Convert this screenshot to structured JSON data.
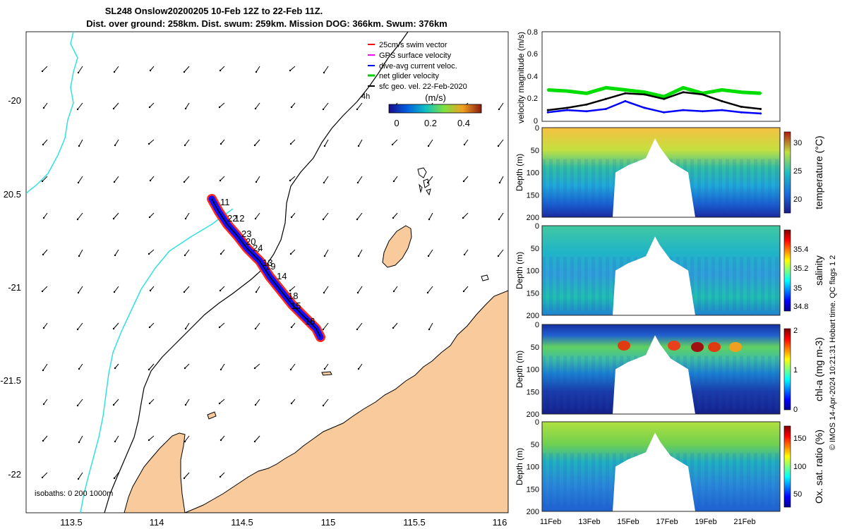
{
  "title": {
    "line1": "SL248 Onslow20200205 10-Feb 12Z to 22-Feb 11Z.",
    "line2": "Dist. over ground: 258km. Dist. swum: 259km. Mission DOG: 366km. Swum: 376km"
  },
  "map": {
    "lon_ticks": [
      "113.5",
      "114",
      "114.5",
      "115",
      "115.5",
      "116"
    ],
    "lat_ticks": [
      "-20",
      "20.5",
      "-21",
      "-21.5",
      "-22"
    ],
    "legend": [
      {
        "label": "25cm/s swim vector",
        "color": "#ff0000"
      },
      {
        "label": "GPS surface velocity",
        "color": "#ff00ff"
      },
      {
        "label": "dive-avg current veloc.",
        "color": "#0000ff"
      },
      {
        "label": "net glider velocity",
        "color": "#00cc00"
      },
      {
        "label": "sfc geo. vel. 22-Feb-2020",
        "color": "#000000"
      }
    ],
    "speed_unit": "(m/s)",
    "colorbar_ticks": [
      "0",
      "0.2",
      "0.4"
    ],
    "isobaths_label": "isobaths: 0   200  1000m",
    "contour_label": "4h",
    "day_labels": [
      "11",
      "22",
      "12",
      "23",
      "20",
      "24",
      "13",
      "19",
      "14",
      "18",
      "15",
      "16"
    ],
    "land_color": "#f9cb9c",
    "isobath_200_color": "#000000",
    "isobath_1000_color": "#33e0e0"
  },
  "panels": {
    "velocity": {
      "ylabel": "velocity magnitude (m/s)",
      "yticks": [
        "0",
        "0.2",
        "0.4",
        "0.6",
        "0.8"
      ]
    },
    "temperature": {
      "ylabel": "Depth (m)",
      "cblabel": "temperature (°C)",
      "cbticks": [
        "20",
        "25",
        "30"
      ]
    },
    "salinity": {
      "ylabel": "Depth (m)",
      "cblabel": "salinity",
      "cbticks": [
        "34.8",
        "35",
        "35.2",
        "35.4"
      ]
    },
    "chla": {
      "ylabel": "Depth (m)",
      "cblabel": "chl-a (mg m-3)",
      "cbticks": [
        "0",
        "1",
        "2"
      ]
    },
    "oxygen": {
      "ylabel": "Depth (m)",
      "cblabel": "Ox. sat. ratio (%)",
      "cbticks": [
        "50",
        "100",
        "150"
      ]
    },
    "depth_ticks": [
      "0",
      "50",
      "100",
      "150",
      "200"
    ],
    "date_ticks": [
      "11Feb",
      "13Feb",
      "15Feb",
      "17Feb",
      "19Feb",
      "21Feb"
    ]
  },
  "side_note": "© IMOS 14-Apr-2024 10:21:31 Hobart time. QC flags 1  2",
  "chart_data": [
    {
      "type": "line",
      "title": "",
      "ylabel": "velocity magnitude (m/s)",
      "ylim": [
        0,
        0.8
      ],
      "x_range": [
        "10-Feb",
        "22-Feb"
      ],
      "series": [
        {
          "name": "net glider velocity",
          "color": "#00dd00",
          "x_day": [
            10.5,
            11.5,
            12.5,
            13.5,
            14.5,
            15.5,
            16.5,
            17.5,
            18.5,
            19.5,
            20.5,
            21.5
          ],
          "values": [
            0.28,
            0.27,
            0.25,
            0.3,
            0.28,
            0.26,
            0.22,
            0.3,
            0.25,
            0.28,
            0.26,
            0.25
          ]
        },
        {
          "name": "dive-avg current veloc.",
          "color": "#0000ff",
          "x_day": [
            10.5,
            11.5,
            12.5,
            13.5,
            14.5,
            15.5,
            16.5,
            17.5,
            18.5,
            19.5,
            20.5,
            21.5
          ],
          "values": [
            0.08,
            0.1,
            0.09,
            0.11,
            0.18,
            0.12,
            0.08,
            0.1,
            0.09,
            0.1,
            0.08,
            0.07
          ]
        },
        {
          "name": "sfc geo. vel. 22-Feb-2020",
          "color": "#000000",
          "x_day": [
            10.5,
            11.5,
            12.5,
            13.5,
            14.5,
            15.5,
            16.5,
            17.5,
            18.5,
            19.5,
            20.5,
            21.5
          ],
          "values": [
            0.1,
            0.12,
            0.15,
            0.2,
            0.25,
            0.24,
            0.2,
            0.26,
            0.24,
            0.18,
            0.13,
            0.11
          ]
        }
      ]
    },
    {
      "type": "heatmap",
      "variable": "temperature",
      "unit": "°C",
      "clim": [
        18,
        31
      ],
      "depth_range": [
        0,
        200
      ]
    },
    {
      "type": "heatmap",
      "variable": "salinity",
      "clim": [
        34.75,
        35.5
      ],
      "depth_range": [
        0,
        200
      ]
    },
    {
      "type": "heatmap",
      "variable": "chl-a",
      "unit": "mg m-3",
      "clim": [
        0,
        2
      ],
      "depth_range": [
        0,
        200
      ]
    },
    {
      "type": "heatmap",
      "variable": "Ox. sat. ratio",
      "unit": "%",
      "clim": [
        30,
        175
      ],
      "depth_range": [
        0,
        200
      ]
    }
  ]
}
